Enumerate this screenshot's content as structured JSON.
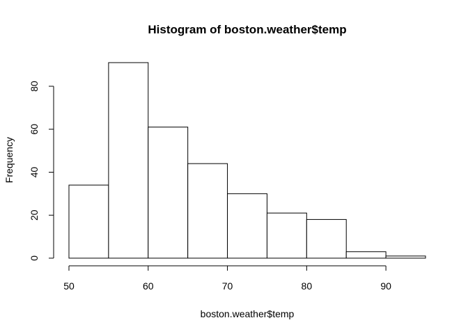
{
  "chart_data": {
    "type": "bar",
    "title": "Histogram of boston.weather$temp",
    "xlabel": "boston.weather$temp",
    "ylabel": "Frequency",
    "bins": [
      {
        "start": 50,
        "end": 55,
        "count": 34
      },
      {
        "start": 55,
        "end": 60,
        "count": 91
      },
      {
        "start": 60,
        "end": 65,
        "count": 61
      },
      {
        "start": 65,
        "end": 70,
        "count": 44
      },
      {
        "start": 70,
        "end": 75,
        "count": 30
      },
      {
        "start": 75,
        "end": 80,
        "count": 21
      },
      {
        "start": 80,
        "end": 85,
        "count": 18
      },
      {
        "start": 85,
        "end": 90,
        "count": 3
      },
      {
        "start": 90,
        "end": 95,
        "count": 1
      }
    ],
    "xlim": [
      50,
      95
    ],
    "ylim": [
      0,
      91
    ],
    "x_ticks": [
      50,
      60,
      70,
      80,
      90
    ],
    "y_ticks": [
      0,
      20,
      40,
      60,
      80
    ],
    "grid": false
  }
}
